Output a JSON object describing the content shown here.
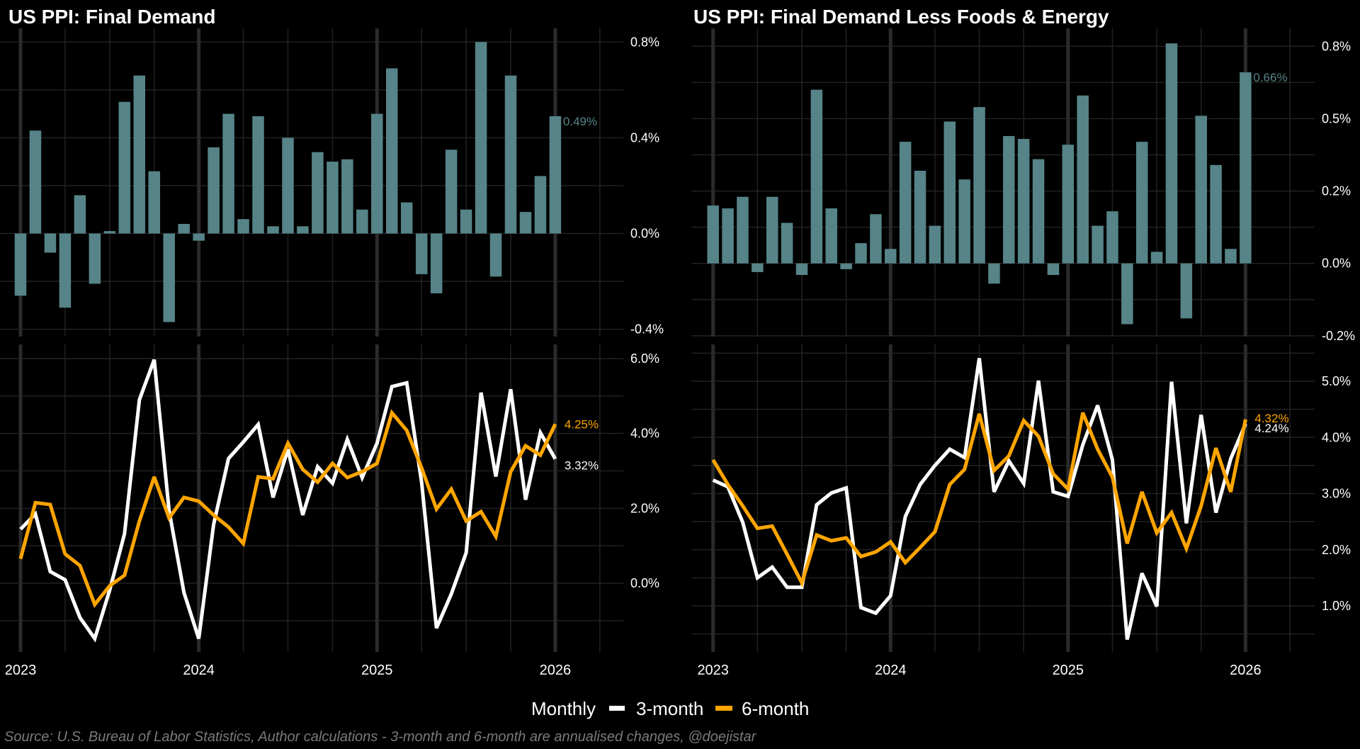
{
  "colors": {
    "background": "#000000",
    "bar": "#568488",
    "three_month": "#ffffff",
    "six_month": "#ffa500",
    "grid_minor": "#222222",
    "grid_major": "#2b2b2b",
    "caption": "#7a7a7a"
  },
  "legend": {
    "items": [
      {
        "label": "Monthly"
      },
      {
        "label": "3-month",
        "color": "#ffffff"
      },
      {
        "label": "6-month",
        "color": "#ffa500"
      }
    ]
  },
  "caption": "Source: U.S. Bureau of Labor Statistics, Author calculations - 3-month and 6-month are annualised changes, @doejistar",
  "chart_data": [
    {
      "id": "headline",
      "type": "bar",
      "title": "US PPI: Final Demand",
      "subplot": "monthly",
      "x_start": "2023-01",
      "x_tick_labels": [
        "2023",
        "2024",
        "2025",
        "2026"
      ],
      "ylim": [
        -0.4,
        0.8
      ],
      "y_ticks": [
        {
          "v": 0.8,
          "label": "0.8%"
        },
        {
          "v": 0.4,
          "label": "0.4%"
        },
        {
          "v": 0.0,
          "label": "0.0%"
        },
        {
          "v": -0.4,
          "label": "-0.4%"
        }
      ],
      "y_minor": [
        0.6,
        0.2,
        -0.2
      ],
      "values": [
        -0.26,
        0.43,
        -0.08,
        -0.31,
        0.16,
        -0.21,
        0.01,
        0.55,
        0.66,
        0.26,
        -0.37,
        0.04,
        -0.03,
        0.36,
        0.5,
        0.06,
        0.49,
        0.03,
        0.4,
        0.03,
        0.34,
        0.3,
        0.31,
        0.1,
        0.5,
        0.69,
        0.13,
        -0.17,
        -0.25,
        0.35,
        0.1,
        0.8,
        -0.18,
        0.66,
        0.09,
        0.24,
        0.49
      ],
      "end_label": "0.49%"
    },
    {
      "id": "headline-annualised",
      "type": "line",
      "subplot": "annualised",
      "x_start": "2023-01",
      "ylim": [
        -1.2,
        6.2
      ],
      "y_ticks": [
        {
          "v": 6.0,
          "label": "6.0%"
        },
        {
          "v": 4.0,
          "label": "4.0%"
        },
        {
          "v": 2.0,
          "label": "2.0%"
        },
        {
          "v": 0.0,
          "label": "0.0%"
        }
      ],
      "y_minor": [
        5.0,
        3.0,
        1.0,
        -1.0
      ],
      "series": [
        {
          "name": "3-month",
          "color": "#ffffff",
          "end_label": "3.32%",
          "values": [
            1.44,
            1.85,
            0.31,
            0.09,
            -0.92,
            -1.48,
            -0.19,
            1.32,
            4.9,
            5.97,
            1.94,
            -0.25,
            -1.48,
            1.57,
            3.33,
            3.77,
            4.24,
            2.29,
            3.58,
            1.82,
            3.11,
            2.67,
            3.84,
            2.82,
            3.74,
            5.25,
            5.35,
            2.7,
            -1.2,
            -0.29,
            0.81,
            5.09,
            2.85,
            5.18,
            2.23,
            4.02,
            3.32
          ]
        },
        {
          "name": "6-month",
          "color": "#ffa500",
          "end_label": "4.25%",
          "values": [
            0.65,
            2.15,
            2.1,
            0.78,
            0.47,
            -0.57,
            -0.07,
            0.21,
            1.66,
            2.84,
            1.74,
            2.29,
            2.19,
            1.82,
            1.5,
            1.06,
            2.84,
            2.79,
            3.74,
            3.04,
            2.7,
            3.2,
            2.82,
            2.98,
            3.2,
            4.55,
            4.08,
            3.08,
            1.98,
            2.51,
            1.66,
            1.91,
            1.25,
            2.98,
            3.67,
            3.42,
            4.25
          ]
        }
      ]
    },
    {
      "id": "core",
      "type": "bar",
      "title": "US PPI: Final Demand Less Foods & Energy",
      "subplot": "monthly",
      "x_start": "2023-01",
      "x_tick_labels": [
        "2023",
        "2024",
        "2025",
        "2026"
      ],
      "ylim": [
        -0.25,
        0.8
      ],
      "y_ticks": [
        {
          "v": 0.75,
          "label": "0.8%"
        },
        {
          "v": 0.5,
          "label": "0.5%"
        },
        {
          "v": 0.25,
          "label": "0.2%"
        },
        {
          "v": 0.0,
          "label": "0.0%"
        },
        {
          "v": -0.25,
          "label": "-0.2%"
        }
      ],
      "y_minor": [
        0.625,
        0.375,
        0.125,
        -0.125
      ],
      "values": [
        0.2,
        0.19,
        0.23,
        -0.03,
        0.23,
        0.14,
        -0.04,
        0.6,
        0.19,
        -0.02,
        0.07,
        0.17,
        0.05,
        0.42,
        0.32,
        0.13,
        0.49,
        0.29,
        0.54,
        -0.07,
        0.44,
        0.43,
        0.36,
        -0.04,
        0.41,
        0.58,
        0.13,
        0.18,
        -0.21,
        0.42,
        0.04,
        0.76,
        -0.19,
        0.51,
        0.34,
        0.05,
        0.66
      ],
      "end_label": "0.66%"
    },
    {
      "id": "core-annualised",
      "type": "line",
      "subplot": "annualised",
      "x_start": "2023-01",
      "ylim": [
        0.3,
        5.8
      ],
      "y_ticks": [
        {
          "v": 5.0,
          "label": "5.0%"
        },
        {
          "v": 4.0,
          "label": "4.0%"
        },
        {
          "v": 3.0,
          "label": "3.0%"
        },
        {
          "v": 2.0,
          "label": "2.0%"
        },
        {
          "v": 1.0,
          "label": "1.0%"
        }
      ],
      "y_minor": [
        5.5,
        4.5,
        3.5,
        2.5,
        1.5,
        0.5
      ],
      "series": [
        {
          "name": "3-month",
          "color": "#ffffff",
          "end_label": "4.24%",
          "values": [
            3.24,
            3.12,
            2.49,
            1.5,
            1.69,
            1.33,
            1.33,
            2.8,
            3.01,
            3.1,
            0.97,
            0.87,
            1.18,
            2.59,
            3.16,
            3.5,
            3.79,
            3.64,
            5.41,
            3.03,
            3.58,
            3.18,
            5.01,
            3.03,
            2.95,
            3.87,
            4.57,
            3.6,
            0.4,
            1.58,
            0.99,
            4.99,
            2.47,
            4.4,
            2.66,
            3.62,
            4.24
          ]
        },
        {
          "name": "6-month",
          "color": "#ffa500",
          "end_label": "4.32%",
          "values": [
            3.6,
            3.16,
            2.78,
            2.38,
            2.42,
            1.92,
            1.41,
            2.26,
            2.16,
            2.21,
            1.88,
            1.96,
            2.14,
            1.77,
            2.04,
            2.32,
            3.16,
            3.43,
            4.42,
            3.41,
            3.67,
            4.3,
            4.02,
            3.35,
            3.08,
            4.44,
            3.79,
            3.29,
            2.11,
            3.03,
            2.3,
            2.66,
            2.02,
            2.78,
            3.81,
            3.03,
            4.32
          ]
        }
      ]
    }
  ]
}
